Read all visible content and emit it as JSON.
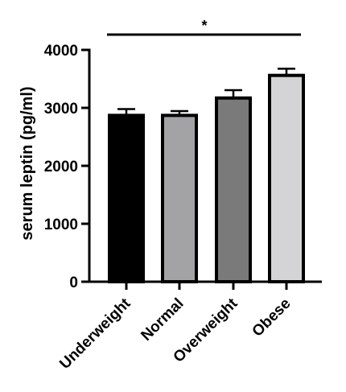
{
  "chart_data": {
    "type": "bar",
    "ylabel": "serum leptin (pg/ml)",
    "xlabel": "",
    "categories": [
      "Underweight",
      "Normal",
      "Overweight",
      "Obese"
    ],
    "values": [
      2870,
      2870,
      3170,
      3560
    ],
    "errors": [
      110,
      75,
      135,
      115
    ],
    "ylim": [
      0,
      4000
    ],
    "yticks": [
      "0",
      "1000",
      "2000",
      "3000",
      "4000"
    ],
    "bar_colors": [
      "#000000",
      "#a3a3a6",
      "#7a7a7a",
      "#d4d4d6"
    ],
    "significance": {
      "label": "*",
      "from": "Underweight",
      "to": "Obese"
    },
    "grid": false,
    "legend": "none"
  }
}
